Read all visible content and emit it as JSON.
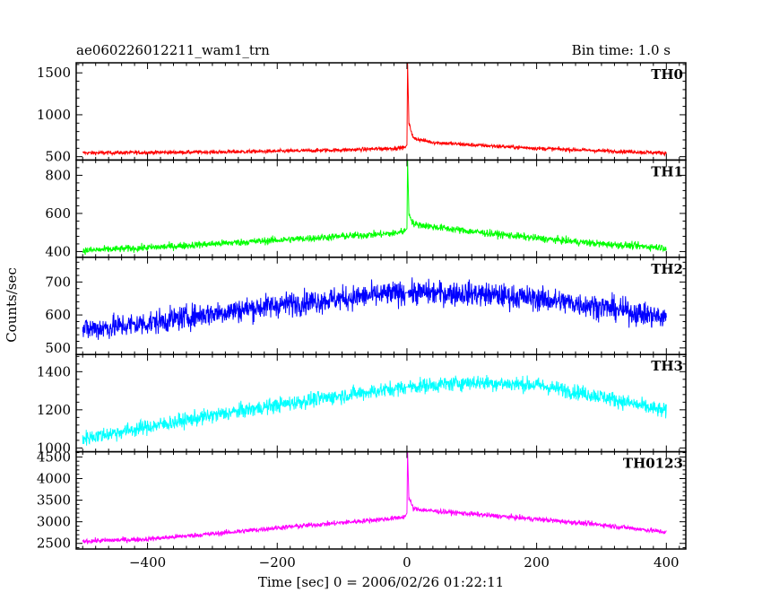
{
  "header": {
    "left_title": "ae060226012211_wam1_trn",
    "right_title": "Bin time: 1.0 s"
  },
  "chart_data": {
    "type": "line",
    "title": "ae060226012211_wam1_trn",
    "subtitle": "Bin time: 1.0 s",
    "xlabel": "Time [sec] 0 = 2006/02/26 01:22:11",
    "ylabel": "Counts/sec",
    "xlim": [
      -510,
      430
    ],
    "xticks": [
      -400,
      -200,
      0,
      200,
      400
    ],
    "x_tick_labels": [
      "−400",
      "−200",
      "0",
      "200",
      "400"
    ],
    "grid": false,
    "legend": "none",
    "panels": [
      {
        "label": "TH0",
        "color": "#ff0000",
        "ylim": [
          460,
          1620
        ],
        "yticks": [
          500,
          1000,
          1500
        ],
        "x": [
          -500,
          -400,
          -300,
          -200,
          -100,
          -20,
          -3,
          0,
          1,
          3,
          10,
          40,
          100,
          200,
          300,
          400
        ],
        "y": [
          545,
          550,
          555,
          565,
          580,
          600,
          610,
          640,
          1620,
          900,
          720,
          670,
          640,
          600,
          570,
          545
        ],
        "noise": 22
      },
      {
        "label": "TH1",
        "color": "#00ff00",
        "ylim": [
          370,
          880
        ],
        "yticks": [
          400,
          600,
          800
        ],
        "x": [
          -500,
          -400,
          -300,
          -200,
          -100,
          -20,
          -3,
          0,
          1,
          3,
          10,
          40,
          100,
          200,
          300,
          400
        ],
        "y": [
          405,
          420,
          440,
          460,
          480,
          495,
          510,
          520,
          880,
          600,
          545,
          530,
          505,
          470,
          440,
          420
        ],
        "noise": 18
      },
      {
        "label": "TH2",
        "color": "#0000ff",
        "ylim": [
          480,
          775
        ],
        "yticks": [
          500,
          600,
          700
        ],
        "x": [
          -500,
          -400,
          -300,
          -200,
          -100,
          0,
          100,
          200,
          300,
          400
        ],
        "y": [
          555,
          575,
          605,
          630,
          650,
          668,
          665,
          650,
          625,
          590
        ],
        "noise": 35
      },
      {
        "label": "TH3",
        "color": "#00ffff",
        "ylim": [
          980,
          1490
        ],
        "yticks": [
          1000,
          1200,
          1400
        ],
        "x": [
          -500,
          -400,
          -300,
          -200,
          -100,
          0,
          100,
          200,
          300,
          400
        ],
        "y": [
          1050,
          1110,
          1170,
          1225,
          1275,
          1320,
          1345,
          1330,
          1270,
          1190
        ],
        "noise": 38
      },
      {
        "label": "TH0123",
        "color": "#ff00ff",
        "ylim": [
          2370,
          4620
        ],
        "yticks": [
          2500,
          3000,
          3500,
          4000,
          4500
        ],
        "x": [
          -500,
          -400,
          -300,
          -200,
          -100,
          -20,
          -3,
          0,
          1,
          3,
          10,
          40,
          100,
          200,
          300,
          400
        ],
        "y": [
          2550,
          2600,
          2720,
          2860,
          2980,
          3080,
          3120,
          3200,
          4620,
          3550,
          3300,
          3250,
          3180,
          3060,
          2930,
          2760
        ],
        "noise": 55
      }
    ]
  }
}
